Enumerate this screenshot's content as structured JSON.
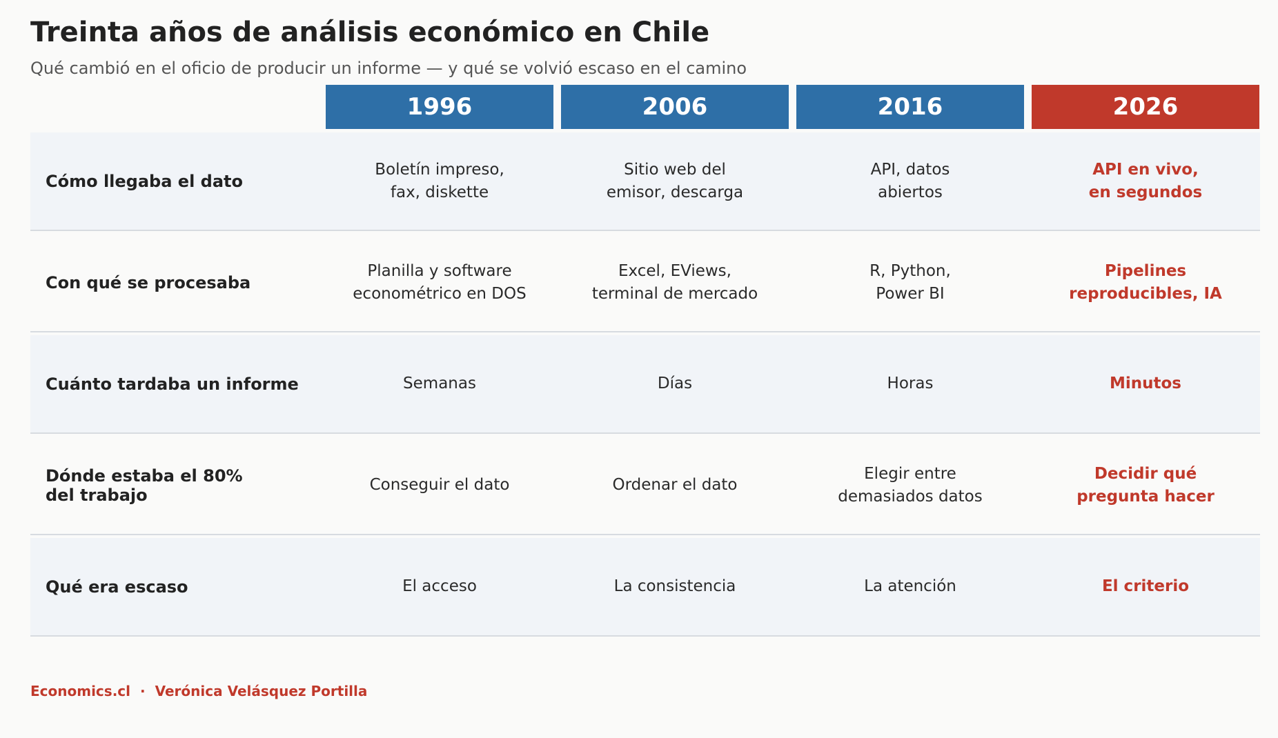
{
  "title": "Treinta años de análisis económico en Chile",
  "subtitle": "Qué cambió en el oficio de producir un informe — y qué se volvió escaso en el camino",
  "colors": {
    "year_header": "#2e6fa7",
    "highlight": "#c0392b",
    "row_shade": "#f1f4f8",
    "divider": "#d7dbe0"
  },
  "chart_data": {
    "type": "table",
    "columns": [
      "1996",
      "2006",
      "2016",
      "2026"
    ],
    "highlight_column": "2026",
    "rows": [
      {
        "label": "Cómo llegaba el dato",
        "values": [
          "Boletín impreso,\nfax, diskette",
          "Sitio web del\nemisor, descarga",
          "API, datos\nabiertos",
          "API en vivo,\nen segundos"
        ]
      },
      {
        "label": "Con qué se procesaba",
        "values": [
          "Planilla y software\neconométrico en DOS",
          "Excel, EViews,\nterminal de mercado",
          "R, Python,\nPower BI",
          "Pipelines\nreproducibles, IA"
        ]
      },
      {
        "label": "Cuánto tardaba un informe",
        "values": [
          "Semanas",
          "Días",
          "Horas",
          "Minutos"
        ]
      },
      {
        "label": "Dónde estaba el 80%\ndel trabajo",
        "values": [
          "Conseguir el dato",
          "Ordenar el dato",
          "Elegir entre\ndemasiados datos",
          "Decidir qué\npregunta hacer"
        ]
      },
      {
        "label": "Qué era escaso",
        "values": [
          "El acceso",
          "La consistencia",
          "La atención",
          "El criterio"
        ]
      }
    ]
  },
  "footer": {
    "brand": "Economics.cl",
    "separator": "·",
    "author": "Verónica Velásquez Portilla"
  }
}
